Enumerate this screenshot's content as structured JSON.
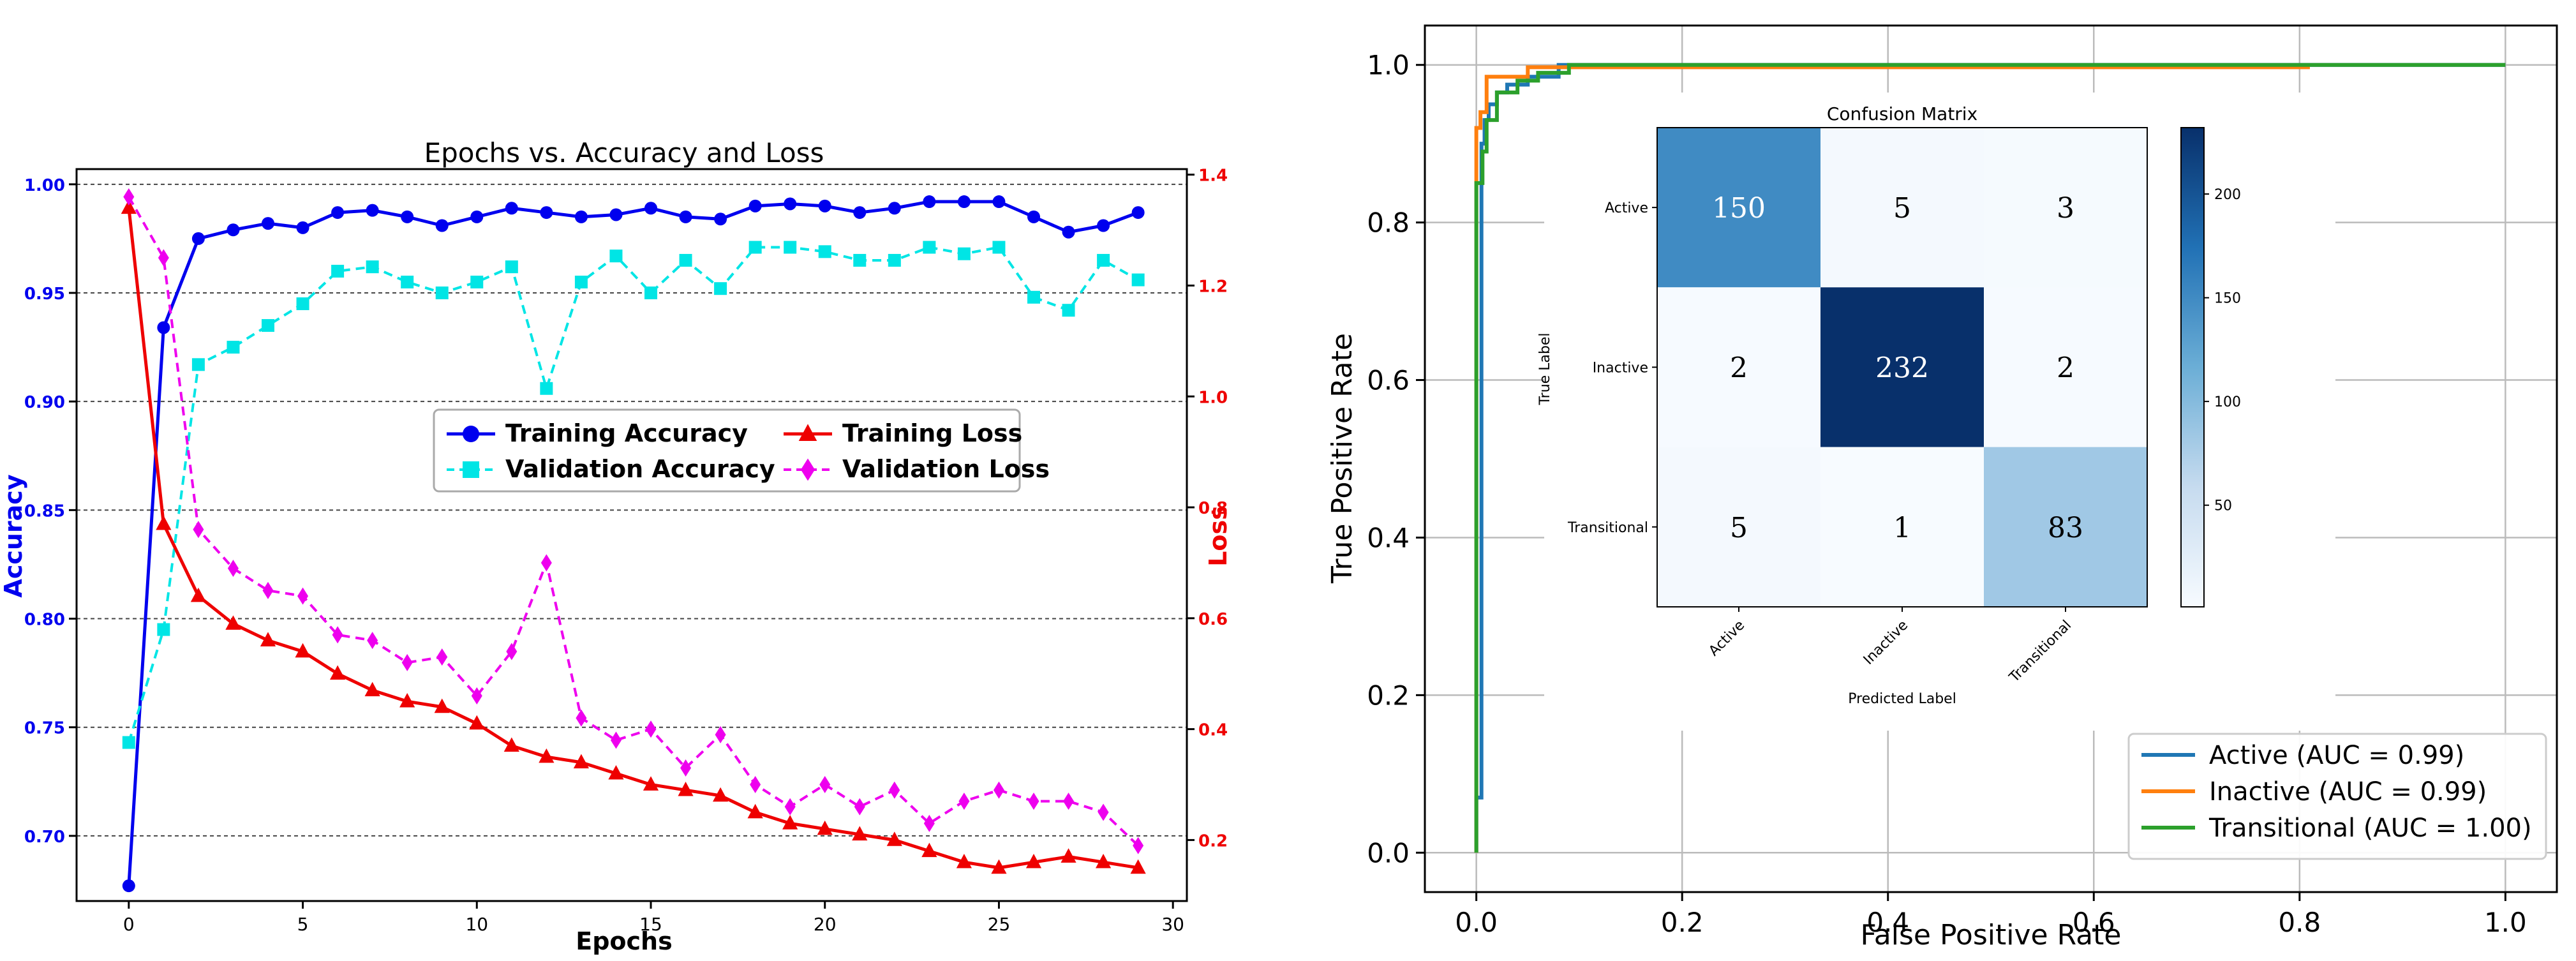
{
  "chart_data": [
    {
      "type": "line",
      "title": "Epochs vs. Accuracy and Loss",
      "xlabel": "Epochs",
      "ylabel": "Accuracy",
      "y2label": "Loss",
      "xlim": [
        -1.5,
        30.4
      ],
      "ylim": [
        0.67,
        1.007
      ],
      "y2lim": [
        0.09,
        1.41
      ],
      "xticks": [
        0,
        5,
        10,
        15,
        20,
        25,
        30
      ],
      "xtick_labels": [
        "0",
        "5",
        "10",
        "15",
        "20",
        "25",
        "30"
      ],
      "yticks": [
        0.7,
        0.75,
        0.8,
        0.85,
        0.9,
        0.95,
        1.0
      ],
      "ytick_labels": [
        "0.70",
        "0.75",
        "0.80",
        "0.85",
        "0.90",
        "0.95",
        "1.00"
      ],
      "y2ticks": [
        0.2,
        0.4,
        0.6,
        0.8,
        1.0,
        1.2,
        1.4
      ],
      "y2tick_labels": [
        "0.2",
        "0.4",
        "0.6",
        "0.8",
        "1.0",
        "1.2",
        "1.4"
      ],
      "grid": "horizontal dashed",
      "legend_position": "center",
      "x": [
        0,
        1,
        2,
        3,
        4,
        5,
        6,
        7,
        8,
        9,
        10,
        11,
        12,
        13,
        14,
        15,
        16,
        17,
        18,
        19,
        20,
        21,
        22,
        23,
        24,
        25,
        26,
        27,
        28,
        29
      ],
      "series": [
        {
          "name": "Training Accuracy",
          "axis": "left",
          "color": "#0000ee",
          "marker": "circle",
          "values": [
            0.677,
            0.934,
            0.975,
            0.979,
            0.982,
            0.98,
            0.987,
            0.988,
            0.985,
            0.981,
            0.985,
            0.989,
            0.987,
            0.985,
            0.986,
            0.989,
            0.985,
            0.984,
            0.99,
            0.991,
            0.99,
            0.987,
            0.989,
            0.992,
            0.992,
            0.992,
            0.985,
            0.978,
            0.981,
            0.987
          ]
        },
        {
          "name": "Validation Accuracy",
          "axis": "left",
          "color": "#00e5e5",
          "marker": "square",
          "values": [
            0.743,
            0.795,
            0.917,
            0.925,
            0.935,
            0.945,
            0.96,
            0.962,
            0.955,
            0.95,
            0.955,
            0.962,
            0.906,
            0.955,
            0.967,
            0.95,
            0.965,
            0.952,
            0.971,
            0.971,
            0.969,
            0.965,
            0.965,
            0.971,
            0.968,
            0.971,
            0.948,
            0.942,
            0.965,
            0.956
          ]
        },
        {
          "name": "Training Loss",
          "axis": "right",
          "color": "#ee0000",
          "marker": "triangle",
          "values": [
            1.34,
            0.77,
            0.64,
            0.59,
            0.56,
            0.54,
            0.5,
            0.47,
            0.45,
            0.44,
            0.41,
            0.37,
            0.35,
            0.34,
            0.32,
            0.3,
            0.29,
            0.28,
            0.25,
            0.23,
            0.22,
            0.21,
            0.2,
            0.18,
            0.16,
            0.15,
            0.16,
            0.17,
            0.16,
            0.15
          ]
        },
        {
          "name": "Validation Loss",
          "axis": "right",
          "color": "#ee00ee",
          "marker": "diamond",
          "values": [
            1.36,
            1.25,
            0.76,
            0.69,
            0.65,
            0.64,
            0.57,
            0.56,
            0.52,
            0.53,
            0.46,
            0.54,
            0.7,
            0.42,
            0.38,
            0.4,
            0.33,
            0.39,
            0.3,
            0.26,
            0.3,
            0.26,
            0.29,
            0.23,
            0.27,
            0.29,
            0.27,
            0.27,
            0.25,
            0.19
          ]
        }
      ]
    },
    {
      "type": "line",
      "title": "",
      "xlabel": "False Positive Rate",
      "ylabel": "True Positive Rate",
      "xlim": [
        -0.05,
        1.05
      ],
      "ylim": [
        -0.05,
        1.05
      ],
      "xticks": [
        0.0,
        0.2,
        0.4,
        0.6,
        0.8,
        1.0
      ],
      "xtick_labels": [
        "0.0",
        "0.2",
        "0.4",
        "0.6",
        "0.8",
        "1.0"
      ],
      "yticks": [
        0.0,
        0.2,
        0.4,
        0.6,
        0.8,
        1.0
      ],
      "ytick_labels": [
        "0.0",
        "0.2",
        "0.4",
        "0.6",
        "0.8",
        "1.0"
      ],
      "grid": true,
      "legend_position": "lower-right",
      "series": [
        {
          "name": "Active (AUC = 0.99)",
          "color": "#1f77b4",
          "x": [
            0,
            0,
            0.005,
            0.005,
            0.008,
            0.008,
            0.012,
            0.012,
            0.02,
            0.02,
            0.03,
            0.03,
            0.05,
            0.05,
            0.08,
            0.08,
            1.0
          ],
          "y": [
            0,
            0.07,
            0.07,
            0.9,
            0.9,
            0.93,
            0.93,
            0.95,
            0.95,
            0.965,
            0.965,
            0.975,
            0.975,
            0.985,
            0.985,
            1.0,
            1.0
          ]
        },
        {
          "name": "Inactive (AUC = 0.99)",
          "color": "#ff7f0e",
          "x": [
            0,
            0,
            0.004,
            0.004,
            0.01,
            0.01,
            0.05,
            0.05,
            0.81
          ],
          "y": [
            0,
            0.92,
            0.92,
            0.94,
            0.94,
            0.985,
            0.985,
            0.997,
            0.997
          ]
        },
        {
          "name": "Transitional (AUC = 1.00)",
          "color": "#2ca02c",
          "x": [
            0,
            0,
            0.006,
            0.006,
            0.01,
            0.01,
            0.02,
            0.02,
            0.04,
            0.04,
            0.06,
            0.06,
            0.09,
            0.09,
            1.0
          ],
          "y": [
            0,
            0.85,
            0.85,
            0.89,
            0.89,
            0.93,
            0.93,
            0.965,
            0.965,
            0.98,
            0.98,
            0.99,
            0.99,
            1.0,
            1.0
          ]
        }
      ]
    },
    {
      "type": "heatmap",
      "title": "Confusion Matrix",
      "xlabel": "Predicted Label",
      "ylabel": "True Label",
      "row_labels": [
        "Active",
        "Inactive",
        "Transitional"
      ],
      "col_labels": [
        "Active",
        "Inactive",
        "Transitional"
      ],
      "values": [
        [
          150,
          5,
          3
        ],
        [
          2,
          232,
          2
        ],
        [
          5,
          1,
          83
        ]
      ],
      "colorbar_ticks": [
        50,
        100,
        150,
        200
      ],
      "colorbar_tick_labels": [
        "50",
        "100",
        "150",
        "200"
      ],
      "vmin": 1,
      "vmax": 232
    }
  ]
}
